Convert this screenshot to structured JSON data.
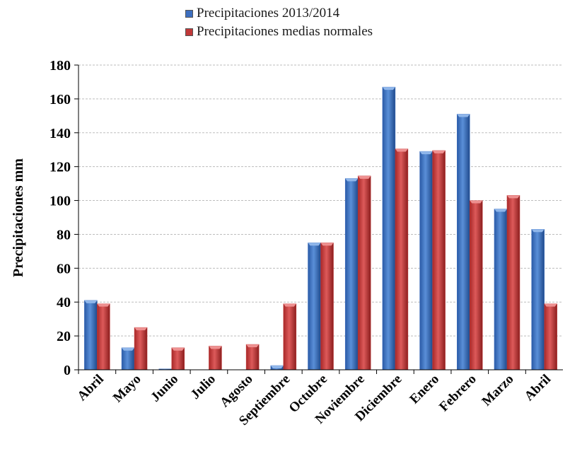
{
  "chart_data": {
    "type": "bar",
    "title": "",
    "xlabel": "",
    "ylabel": "Precipitaciones  mm",
    "ylim": [
      0,
      180
    ],
    "yticks": [
      0,
      20,
      40,
      60,
      80,
      100,
      120,
      140,
      160,
      180
    ],
    "grid": true,
    "legend_position": "top-center",
    "categories": [
      "Abril",
      "Mayo",
      "Junio",
      "Julio",
      "Agosto",
      "Septiembre",
      "Octubre",
      "Noviembre",
      "Diciembre",
      "Enero",
      "Febrero",
      "Marzo",
      "Abril"
    ],
    "series": [
      {
        "name": "Precipitaciones 2013/2014",
        "color": "#3d6fbf",
        "values": [
          41,
          13,
          0.5,
          0,
          0,
          2.5,
          75,
          113,
          167,
          129,
          151,
          95,
          83
        ]
      },
      {
        "name": "Precipitaciones medias normales",
        "color": "#c03838",
        "values": [
          39,
          25,
          13,
          14,
          15,
          39,
          75,
          114.5,
          130.5,
          129.5,
          100,
          103,
          39
        ]
      }
    ]
  }
}
